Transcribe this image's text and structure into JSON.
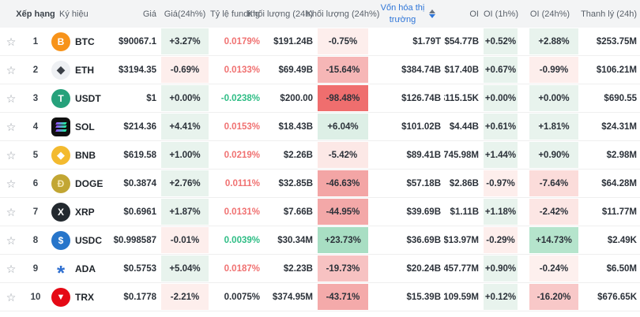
{
  "table": {
    "columns": [
      {
        "key": "fav",
        "label": ""
      },
      {
        "key": "rank",
        "label": "Xếp hạng"
      },
      {
        "key": "symbol",
        "label": "Ký hiệu"
      },
      {
        "key": "price",
        "label": "Giá"
      },
      {
        "key": "price_chg",
        "label": "Giá(24h%)"
      },
      {
        "key": "funding",
        "label": "Tỷ lệ funding"
      },
      {
        "key": "volume",
        "label": "Khối lượng (24h)"
      },
      {
        "key": "volume_chg",
        "label": "Khối lượng (24h%)"
      },
      {
        "key": "market_cap",
        "label": "Vốn hóa thị trường",
        "sortable": true,
        "sort_active": "desc",
        "active_color": "#2e75d8"
      },
      {
        "key": "oi",
        "label": "OI"
      },
      {
        "key": "oi_1h",
        "label": "OI (1h%)"
      },
      {
        "key": "oi_24h",
        "label": "OI (24h%)"
      },
      {
        "key": "liquidation",
        "label": "Thanh lý (24h)"
      }
    ],
    "status_colors": {
      "light_green_bg": "#e8f3ed",
      "light_red_bg": "#fdeeec",
      "funding_red": "#f07171",
      "funding_green": "#2ebd85",
      "funding_neutral": "#2b3139",
      "sort_blue": "#2e75d8"
    },
    "rows": [
      {
        "rank": "1",
        "symbol": "BTC",
        "icon": {
          "bg": "#f7931a",
          "glyph": "B",
          "color": "#ffffff",
          "cls": "btc"
        },
        "price": "$90067.1",
        "price_chg": {
          "text": "+3.27%",
          "bg": "#e8f3ed"
        },
        "funding": {
          "text": "0.0179%",
          "color": "#f07171"
        },
        "volume": "$191.24B",
        "volume_chg": {
          "text": "-0.75%",
          "bg": "#fdeeec"
        },
        "market_cap": "$1.79T",
        "oi": "$54.77B",
        "oi_1h": {
          "text": "+0.52%",
          "bg": "#e8f3ed"
        },
        "oi_24h": {
          "text": "+2.88%",
          "bg": "#e8f3ed"
        },
        "liquidation": "$253.75M"
      },
      {
        "rank": "2",
        "symbol": "ETH",
        "icon": {
          "bg": "#eef0f3",
          "glyph": "◆",
          "color": "#3a3f46",
          "cls": "eth"
        },
        "price": "$3194.35",
        "price_chg": {
          "text": "-0.69%",
          "bg": "#fdeeec"
        },
        "funding": {
          "text": "0.0133%",
          "color": "#f07171"
        },
        "volume": "$69.49B",
        "volume_chg": {
          "text": "-15.64%",
          "bg": "#f6b6b6"
        },
        "market_cap": "$384.74B",
        "oi": "$17.40B",
        "oi_1h": {
          "text": "+0.67%",
          "bg": "#e8f3ed"
        },
        "oi_24h": {
          "text": "-0.99%",
          "bg": "#fdeeec"
        },
        "liquidation": "$106.21M"
      },
      {
        "rank": "3",
        "symbol": "USDT",
        "icon": {
          "bg": "#26a17b",
          "glyph": "T",
          "color": "#ffffff"
        },
        "price": "$1",
        "price_chg": {
          "text": "+0.00%",
          "bg": "#e8f3ed"
        },
        "funding": {
          "text": "-0.0238%",
          "color": "#2ebd85"
        },
        "volume": "$200.00",
        "volume_chg": {
          "text": "-98.48%",
          "bg": "#ef6e6e"
        },
        "market_cap": "$126.74B",
        "oi": "$115.15K",
        "oi_1h": {
          "text": "+0.00%",
          "bg": "#e8f3ed"
        },
        "oi_24h": {
          "text": "+0.00%",
          "bg": "#e8f3ed"
        },
        "liquidation": "$690.55"
      },
      {
        "rank": "4",
        "symbol": "SOL",
        "icon": {
          "bg": "#101010",
          "cls": "sol"
        },
        "price": "$214.36",
        "price_chg": {
          "text": "+4.41%",
          "bg": "#e8f3ed"
        },
        "funding": {
          "text": "0.0153%",
          "color": "#f07171"
        },
        "volume": "$18.43B",
        "volume_chg": {
          "text": "+6.04%",
          "bg": "#ddefe6"
        },
        "market_cap": "$101.02B",
        "oi": "$4.44B",
        "oi_1h": {
          "text": "+0.61%",
          "bg": "#e8f3ed"
        },
        "oi_24h": {
          "text": "+1.81%",
          "bg": "#e8f3ed"
        },
        "liquidation": "$24.31M"
      },
      {
        "rank": "5",
        "symbol": "BNB",
        "icon": {
          "bg": "#f3ba2f",
          "glyph": "◆",
          "color": "#ffffff",
          "cls": "bnb"
        },
        "price": "$619.58",
        "price_chg": {
          "text": "+1.00%",
          "bg": "#e8f3ed"
        },
        "funding": {
          "text": "0.0219%",
          "color": "#f07171"
        },
        "volume": "$2.26B",
        "volume_chg": {
          "text": "-5.42%",
          "bg": "#fce8e6"
        },
        "market_cap": "$89.41B",
        "oi": "$745.98M",
        "oi_1h": {
          "text": "+1.44%",
          "bg": "#e8f3ed"
        },
        "oi_24h": {
          "text": "+0.90%",
          "bg": "#e8f3ed"
        },
        "liquidation": "$2.98M"
      },
      {
        "rank": "6",
        "symbol": "DOGE",
        "icon": {
          "bg": "#c2a633",
          "glyph": "Ð",
          "color": "#f5e7b2"
        },
        "price": "$0.3874",
        "price_chg": {
          "text": "+2.76%",
          "bg": "#e8f3ed"
        },
        "funding": {
          "text": "0.0111%",
          "color": "#f07171"
        },
        "volume": "$32.85B",
        "volume_chg": {
          "text": "-46.63%",
          "bg": "#f3a5a5"
        },
        "market_cap": "$57.18B",
        "oi": "$2.86B",
        "oi_1h": {
          "text": "-0.97%",
          "bg": "#fdeeec"
        },
        "oi_24h": {
          "text": "-7.64%",
          "bg": "#fbdcda"
        },
        "liquidation": "$64.28M"
      },
      {
        "rank": "7",
        "symbol": "XRP",
        "icon": {
          "bg": "#23292f",
          "glyph": "X",
          "color": "#ffffff"
        },
        "price": "$0.6961",
        "price_chg": {
          "text": "+1.87%",
          "bg": "#e8f3ed"
        },
        "funding": {
          "text": "0.0131%",
          "color": "#f07171"
        },
        "volume": "$7.66B",
        "volume_chg": {
          "text": "-44.95%",
          "bg": "#f3a8a8"
        },
        "market_cap": "$39.69B",
        "oi": "$1.11B",
        "oi_1h": {
          "text": "+1.18%",
          "bg": "#e8f3ed"
        },
        "oi_24h": {
          "text": "-2.42%",
          "bg": "#fce6e4"
        },
        "liquidation": "$11.77M"
      },
      {
        "rank": "8",
        "symbol": "USDC",
        "icon": {
          "bg": "#2775ca",
          "glyph": "$",
          "color": "#ffffff"
        },
        "price": "$0.998587",
        "price_chg": {
          "text": "-0.01%",
          "bg": "#fdeeec"
        },
        "funding": {
          "text": "0.0039%",
          "color": "#2ebd85"
        },
        "volume": "$30.34M",
        "volume_chg": {
          "text": "+23.73%",
          "bg": "#a8dec3"
        },
        "market_cap": "$36.69B",
        "oi": "$13.97M",
        "oi_1h": {
          "text": "-0.29%",
          "bg": "#fdeeec"
        },
        "oi_24h": {
          "text": "+14.73%",
          "bg": "#b5e4cc"
        },
        "liquidation": "$2.49K"
      },
      {
        "rank": "9",
        "symbol": "ADA",
        "icon": {
          "bg": "#ffffff",
          "glyph": "*",
          "color": "#2f6fd0",
          "cls": "ada"
        },
        "price": "$0.5753",
        "price_chg": {
          "text": "+5.04%",
          "bg": "#e8f3ed"
        },
        "funding": {
          "text": "0.0187%",
          "color": "#f07171"
        },
        "volume": "$2.23B",
        "volume_chg": {
          "text": "-19.73%",
          "bg": "#f7c2c2"
        },
        "market_cap": "$20.24B",
        "oi": "$457.77M",
        "oi_1h": {
          "text": "+0.90%",
          "bg": "#e8f3ed"
        },
        "oi_24h": {
          "text": "-0.24%",
          "bg": "#fdf0ee"
        },
        "liquidation": "$6.50M"
      },
      {
        "rank": "10",
        "symbol": "TRX",
        "icon": {
          "bg": "#e50915",
          "glyph": "▼",
          "color": "#ffffff",
          "cls": "trx"
        },
        "price": "$0.1778",
        "price_chg": {
          "text": "-2.21%",
          "bg": "#fdeeec"
        },
        "funding": {
          "text": "0.0075%",
          "color": "#2b3139"
        },
        "volume": "$374.95M",
        "volume_chg": {
          "text": "-43.71%",
          "bg": "#f4aaaa"
        },
        "market_cap": "$15.39B",
        "oi": "$109.59M",
        "oi_1h": {
          "text": "+0.12%",
          "bg": "#e8f3ed"
        },
        "oi_24h": {
          "text": "-16.20%",
          "bg": "#f8c8c8"
        },
        "liquidation": "$676.65K"
      }
    ]
  }
}
